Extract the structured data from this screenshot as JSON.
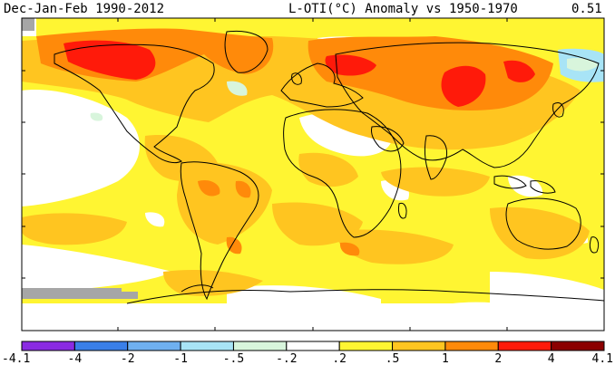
{
  "header": {
    "title_left": "Dec-Jan-Feb 1990-2012",
    "title_right": "L-OTI(°C) Anomaly vs 1950-1970",
    "mean_value": "0.51"
  },
  "legend": {
    "bins": [
      {
        "label": "-4.1",
        "color": "#8a2be2"
      },
      {
        "label": "-4",
        "color": "#3a7fe8"
      },
      {
        "label": "-2",
        "color": "#6fb0f0"
      },
      {
        "label": "-1",
        "color": "#a8e4f6"
      },
      {
        "label": "-.5",
        "color": "#d8f5dc"
      },
      {
        "label": "-.2",
        "color": "#ffffff"
      },
      {
        "label": ".2",
        "color": "#fff532"
      },
      {
        "label": ".5",
        "color": "#ffc520"
      },
      {
        "label": "1",
        "color": "#ff8a0a"
      },
      {
        "label": "2",
        "color": "#ff1a0a"
      },
      {
        "label": "4",
        "color": "#8b0000"
      }
    ],
    "end_label": "4.1"
  },
  "colors": {
    "nodata": "#a6a6a6",
    "land": "#000000"
  }
}
